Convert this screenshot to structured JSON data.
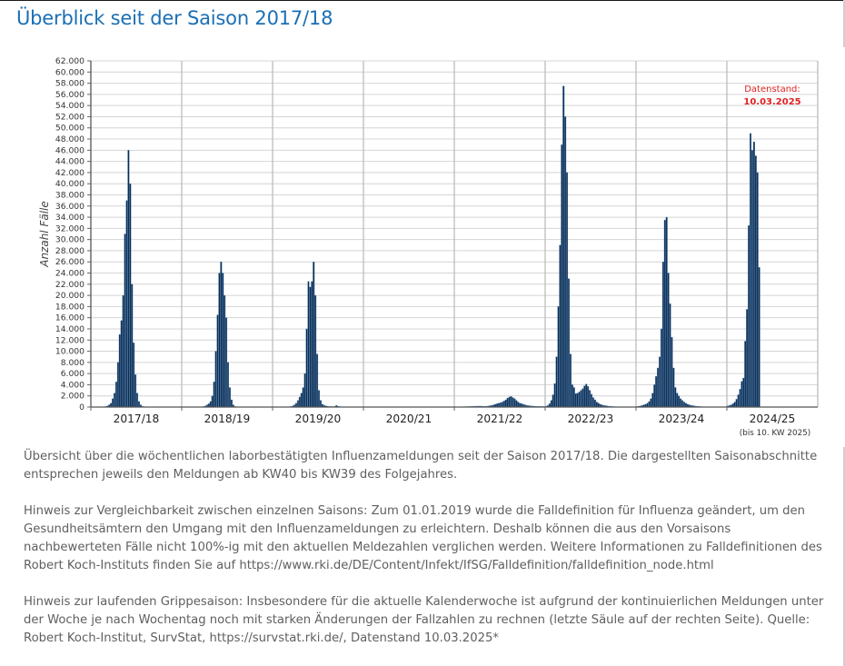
{
  "page": {
    "title": "Überblick seit der Saison 2017/18",
    "caption_1": "Übersicht über die wöchentlichen laborbestätigten Influenzameldungen seit der Saison 2017/18. Die dargestellten Saisonabschnitte entsprechen jeweils den Meldungen ab KW40 bis KW39 des Folgejahres.",
    "caption_2": "Hinweis zur Vergleichbarkeit zwischen einzelnen Saisons: Zum 01.01.2019 wurde die Falldefinition für Influenza geändert, um den Gesundheitsämtern den Umgang mit den Influenzameldungen zu erleichtern. Deshalb können die aus den Vorsaisons nachbewerteten Fälle nicht 100%-ig mit den aktuellen Meldezahlen verglichen werden. Weitere Informationen zu Falldefinitionen des Robert Koch-Instituts finden Sie auf https://www.rki.de/DE/Content/Infekt/IfSG/Falldefinition/falldefinition_node.html",
    "caption_3": "Hinweis zur laufenden Grippesaison: Insbesondere für die aktuelle Kalenderwoche ist aufgrund der kontinuierlichen Meldungen unter der Woche je nach Wochentag noch mit starken Änderungen der Fallzahlen zu rechnen (letzte Säule auf der rechten Seite). Quelle: Robert Koch-Institut, SurvStat, https://survstat.rki.de/, Datenstand 10.03.2025*"
  },
  "colors": {
    "title": "#1a6fb5",
    "bar": "#0d2a4d",
    "bar_edge": "#4a7fb3",
    "annotation": "#e02020",
    "grid": "#d4d4d4",
    "divider": "#bdbdbd",
    "caption": "#5f5f5f"
  },
  "chart_data": {
    "type": "bar",
    "title": "",
    "xlabel": "",
    "ylabel": "Anzahl Fälle",
    "ylim": [
      0,
      62000
    ],
    "y_ticks": [
      "0",
      "2.000",
      "4.000",
      "6.000",
      "8.000",
      "10.000",
      "12.000",
      "14.000",
      "16.000",
      "18.000",
      "20.000",
      "22.000",
      "24.000",
      "26.000",
      "28.000",
      "30.000",
      "32.000",
      "34.000",
      "36.000",
      "38.000",
      "40.000",
      "42.000",
      "44.000",
      "46.000",
      "48.000",
      "50.000",
      "52.000",
      "54.000",
      "56.000",
      "58.000",
      "60.000",
      "62.000"
    ],
    "grid": true,
    "weeks_per_season": 52,
    "annotation": {
      "line1": "Datenstand:",
      "line2": "10.03.2025"
    },
    "last_season_note": "(bis 10. KW 2025)",
    "seasons": [
      {
        "label": "2017/18",
        "values": [
          0,
          0,
          0,
          0,
          0,
          0,
          0,
          50,
          100,
          200,
          400,
          700,
          1500,
          2500,
          4500,
          8000,
          13000,
          15500,
          20000,
          31000,
          37000,
          46000,
          40000,
          22000,
          11500,
          5800,
          2500,
          1000,
          400,
          150,
          80,
          50,
          30,
          20,
          10,
          0,
          0,
          0,
          0,
          0,
          0,
          0,
          0,
          0,
          0,
          0,
          0,
          0,
          0,
          0,
          0,
          0
        ]
      },
      {
        "label": "2018/19",
        "values": [
          0,
          0,
          0,
          0,
          0,
          0,
          0,
          0,
          0,
          0,
          0,
          50,
          100,
          200,
          400,
          600,
          1000,
          2000,
          4500,
          10000,
          16500,
          24000,
          26000,
          24000,
          20000,
          16000,
          8000,
          3500,
          1300,
          400,
          100,
          50,
          20,
          10,
          0,
          0,
          0,
          0,
          0,
          0,
          0,
          0,
          0,
          0,
          0,
          0,
          0,
          0,
          0,
          0,
          0,
          0
        ]
      },
      {
        "label": "2019/20",
        "values": [
          0,
          0,
          0,
          0,
          0,
          0,
          0,
          0,
          0,
          0,
          100,
          200,
          400,
          700,
          1200,
          1800,
          2500,
          3500,
          6000,
          14000,
          22500,
          21500,
          22500,
          26000,
          20000,
          9500,
          3000,
          1200,
          500,
          300,
          200,
          150,
          100,
          100,
          80,
          100,
          300,
          150,
          80,
          50,
          30,
          20,
          10,
          0,
          0,
          0,
          0,
          0,
          0,
          0,
          0,
          0
        ]
      },
      {
        "label": "2020/21",
        "values": [
          0,
          0,
          0,
          0,
          0,
          0,
          0,
          0,
          0,
          0,
          0,
          0,
          0,
          0,
          0,
          0,
          0,
          0,
          0,
          0,
          0,
          0,
          0,
          0,
          0,
          0,
          0,
          0,
          0,
          0,
          0,
          0,
          0,
          0,
          0,
          0,
          0,
          0,
          0,
          0,
          0,
          0,
          0,
          0,
          0,
          0,
          0,
          0,
          0,
          0,
          0,
          0
        ]
      },
      {
        "label": "2021/22",
        "values": [
          30,
          30,
          40,
          50,
          60,
          70,
          80,
          90,
          100,
          120,
          140,
          150,
          160,
          160,
          170,
          160,
          140,
          140,
          150,
          180,
          250,
          300,
          400,
          500,
          600,
          700,
          800,
          900,
          1100,
          1300,
          1600,
          1800,
          1900,
          1700,
          1500,
          1200,
          900,
          700,
          600,
          500,
          400,
          300,
          250,
          200,
          180,
          160,
          140,
          120,
          110,
          100,
          100,
          90
        ]
      },
      {
        "label": "2022/23",
        "values": [
          150,
          300,
          600,
          1200,
          2200,
          4200,
          9000,
          18000,
          29000,
          47000,
          57500,
          52000,
          42000,
          23000,
          9500,
          4000,
          3500,
          2400,
          2500,
          2700,
          3000,
          3300,
          3800,
          4100,
          3700,
          3000,
          2300,
          1700,
          1300,
          900,
          700,
          500,
          400,
          300,
          250,
          200,
          150,
          120,
          100,
          80,
          60,
          50,
          40,
          30,
          20,
          10,
          0,
          0,
          0,
          0,
          0,
          0
        ]
      },
      {
        "label": "2023/24",
        "values": [
          100,
          150,
          200,
          300,
          400,
          500,
          700,
          1000,
          1500,
          2500,
          4000,
          5500,
          7000,
          9000,
          14000,
          26000,
          33500,
          34000,
          24000,
          18500,
          12500,
          7000,
          3500,
          2500,
          2000,
          1500,
          1200,
          900,
          700,
          500,
          400,
          300,
          250,
          200,
          150,
          120,
          100,
          80,
          60,
          50,
          40,
          30,
          20,
          10,
          0,
          0,
          0,
          0,
          0,
          0,
          0,
          0
        ]
      },
      {
        "label": "2024/25",
        "values": [
          200,
          300,
          400,
          600,
          900,
          1400,
          2200,
          3200,
          4600,
          5200,
          11800,
          17500,
          32500,
          49000,
          46000,
          47500,
          45000,
          42000,
          25000
        ]
      }
    ]
  }
}
